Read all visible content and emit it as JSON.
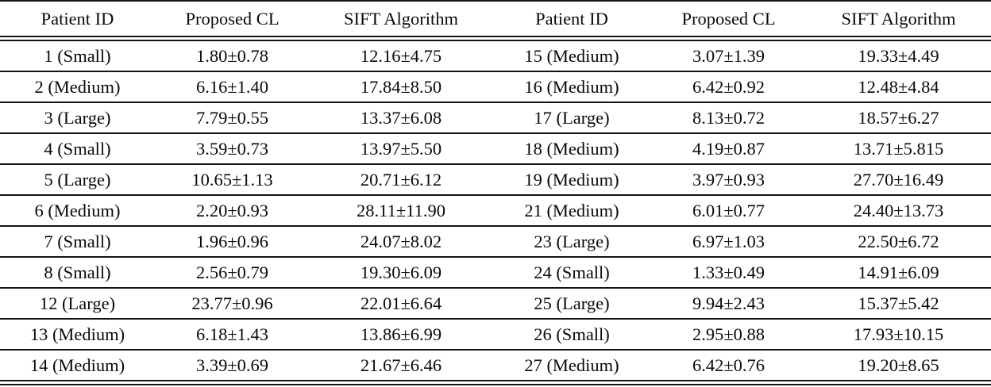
{
  "table": {
    "headers": [
      "Patient ID",
      "Proposed CL",
      "SIFT Algorithm",
      "Patient ID",
      "Proposed CL",
      "SIFT Algorithm"
    ],
    "rows": [
      [
        "1 (Small)",
        "1.80±0.78",
        "12.16±4.75",
        "15 (Medium)",
        "3.07±1.39",
        "19.33±4.49"
      ],
      [
        "2 (Medium)",
        "6.16±1.40",
        "17.84±8.50",
        "16 (Medium)",
        "6.42±0.92",
        "12.48±4.84"
      ],
      [
        "3 (Large)",
        "7.79±0.55",
        "13.37±6.08",
        "17 (Large)",
        "8.13±0.72",
        "18.57±6.27"
      ],
      [
        "4 (Small)",
        "3.59±0.73",
        "13.97±5.50",
        "18 (Medium)",
        "4.19±0.87",
        "13.71±5.815"
      ],
      [
        "5 (Large)",
        "10.65±1.13",
        "20.71±6.12",
        "19 (Medium)",
        "3.97±0.93",
        "27.70±16.49"
      ],
      [
        "6 (Medium)",
        "2.20±0.93",
        "28.11±11.90",
        "21 (Medium)",
        "6.01±0.77",
        "24.40±13.73"
      ],
      [
        "7 (Small)",
        "1.96±0.96",
        "24.07±8.02",
        "23 (Large)",
        "6.97±1.03",
        "22.50±6.72"
      ],
      [
        "8 (Small)",
        "2.56±0.79",
        "19.30±6.09",
        "24 (Small)",
        "1.33±0.49",
        "14.91±6.09"
      ],
      [
        "12 (Large)",
        "23.77±0.96",
        "22.01±6.64",
        "25 (Large)",
        "9.94±2.43",
        "15.37±5.42"
      ],
      [
        "13 (Medium)",
        "6.18±1.43",
        "13.86±6.99",
        "26 (Small)",
        "2.95±0.88",
        "17.93±10.15"
      ],
      [
        "14 (Medium)",
        "3.39±0.69",
        "21.67±6.46",
        "27 (Medium)",
        "6.42±0.76",
        "19.20±8.65"
      ]
    ],
    "text_color": "#0a0a0a",
    "rule_color": "#141414",
    "background_color": "#ffffff"
  }
}
